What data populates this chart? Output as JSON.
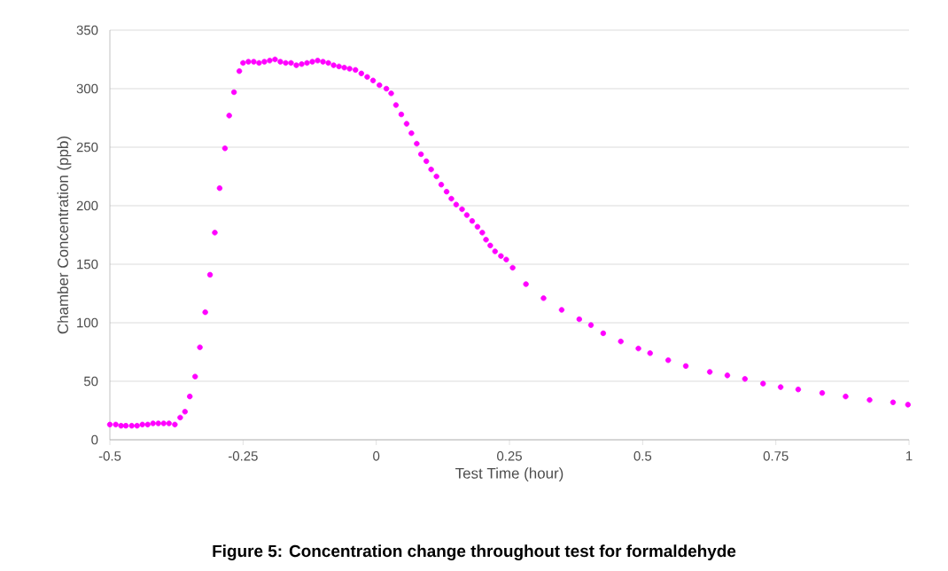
{
  "chart_data": {
    "type": "scatter",
    "title": "Figure 5: Concentration change throughout test for formaldehyde",
    "xlabel": "Test Time (hour)",
    "ylabel": "Chamber Concentration (ppb)",
    "xlim": [
      -0.5,
      1
    ],
    "xticks": [
      -0.5,
      -0.25,
      0,
      0.25,
      0.5,
      0.75,
      1
    ],
    "ylim": [
      0,
      350
    ],
    "yticks": [
      0,
      50,
      100,
      150,
      200,
      250,
      300,
      350
    ],
    "grid": "y",
    "marker": "circle",
    "series": [
      {
        "color": "#ff00ff",
        "x": [
          -0.5,
          -0.489,
          -0.479,
          -0.47,
          -0.459,
          -0.449,
          -0.439,
          -0.429,
          -0.419,
          -0.409,
          -0.399,
          -0.389,
          -0.378,
          -0.368,
          -0.359,
          -0.35,
          -0.34,
          -0.331,
          -0.321,
          -0.312,
          -0.303,
          -0.294,
          -0.284,
          -0.276,
          -0.267,
          -0.257,
          -0.25,
          -0.24,
          -0.23,
          -0.22,
          -0.21,
          -0.2,
          -0.19,
          -0.18,
          -0.17,
          -0.16,
          -0.15,
          -0.14,
          -0.13,
          -0.12,
          -0.11,
          -0.1,
          -0.09,
          -0.08,
          -0.07,
          -0.06,
          -0.05,
          -0.039,
          -0.028,
          -0.017,
          -0.006,
          0.006,
          0.019,
          0.028,
          0.037,
          0.047,
          0.057,
          0.066,
          0.076,
          0.084,
          0.094,
          0.103,
          0.113,
          0.122,
          0.132,
          0.141,
          0.15,
          0.161,
          0.17,
          0.18,
          0.19,
          0.199,
          0.206,
          0.214,
          0.223,
          0.234,
          0.244,
          0.256,
          0.281,
          0.314,
          0.348,
          0.381,
          0.403,
          0.426,
          0.459,
          0.492,
          0.514,
          0.548,
          0.581,
          0.626,
          0.659,
          0.692,
          0.726,
          0.759,
          0.792,
          0.837,
          0.881,
          0.926,
          0.97,
          0.998
        ],
        "values": [
          13,
          13,
          12,
          12,
          12,
          12,
          13,
          13,
          14,
          14,
          14,
          14,
          13,
          19,
          24,
          37,
          54,
          79,
          109,
          141,
          177,
          215,
          249,
          277,
          297,
          315,
          322,
          323,
          323,
          322,
          323,
          324,
          325,
          323,
          322,
          322,
          320,
          321,
          322,
          323,
          324,
          323,
          322,
          320,
          319,
          318,
          317,
          316,
          313,
          310,
          307,
          303,
          300,
          296,
          286,
          278,
          270,
          262,
          253,
          244,
          238,
          231,
          225,
          218,
          212,
          206,
          201,
          197,
          192,
          187,
          182,
          177,
          171,
          166,
          161,
          157,
          154,
          147,
          133,
          121,
          111,
          103,
          98,
          91,
          84,
          78,
          74,
          68,
          63,
          58,
          55,
          52,
          48,
          45,
          43,
          40,
          37,
          34,
          32,
          30
        ]
      }
    ]
  }
}
